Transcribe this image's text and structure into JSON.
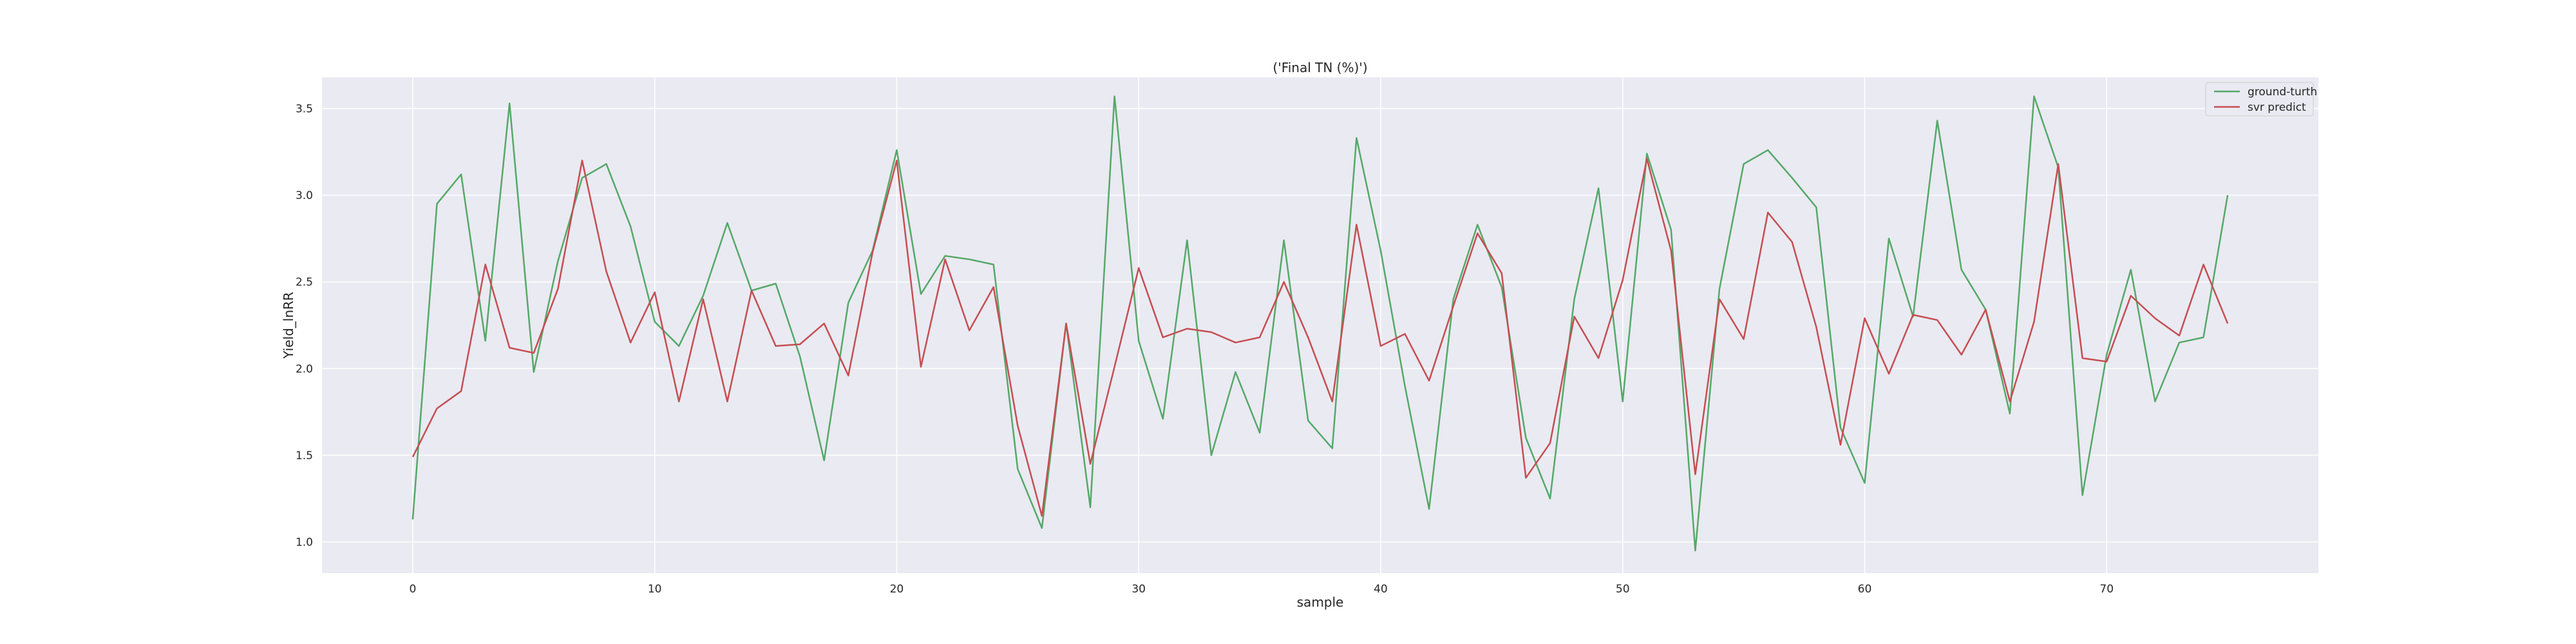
{
  "chart_data": {
    "type": "line",
    "title": "('Final TN (%)')",
    "xlabel": "sample",
    "ylabel": "Yield_lnRR",
    "xlim": [
      -3.75,
      78.75
    ],
    "ylim": [
      0.82,
      3.68
    ],
    "x_ticks": [
      0,
      10,
      20,
      30,
      40,
      50,
      60,
      70
    ],
    "y_ticks": [
      1.0,
      1.5,
      2.0,
      2.5,
      3.0,
      3.5
    ],
    "y_tick_labels": [
      "1.0",
      "1.5",
      "2.0",
      "2.5",
      "3.0",
      "3.5"
    ],
    "grid": true,
    "background": "#eaeaf2",
    "legend_position": "upper right",
    "x": [
      0,
      1,
      2,
      3,
      4,
      5,
      6,
      7,
      8,
      9,
      10,
      11,
      12,
      13,
      14,
      15,
      16,
      17,
      18,
      19,
      20,
      21,
      22,
      23,
      24,
      25,
      26,
      27,
      28,
      29,
      30,
      31,
      32,
      33,
      34,
      35,
      36,
      37,
      38,
      39,
      40,
      41,
      42,
      43,
      44,
      45,
      46,
      47,
      48,
      49,
      50,
      51,
      52,
      53,
      54,
      55,
      56,
      57,
      58,
      59,
      60,
      61,
      62,
      63,
      64,
      65,
      66,
      67,
      68,
      69,
      70,
      71,
      72,
      73,
      74,
      75
    ],
    "series": [
      {
        "name": "ground-turth",
        "color": "#55a868",
        "values": [
          1.13,
          2.95,
          3.12,
          2.16,
          3.53,
          1.98,
          2.62,
          3.1,
          3.18,
          2.82,
          2.27,
          2.13,
          2.42,
          2.84,
          2.45,
          2.49,
          2.07,
          1.47,
          2.38,
          2.68,
          3.26,
          2.43,
          2.65,
          2.63,
          2.6,
          1.42,
          1.08,
          2.26,
          1.2,
          3.57,
          2.16,
          1.71,
          2.74,
          1.5,
          1.98,
          1.63,
          2.74,
          1.7,
          1.54,
          3.33,
          2.68,
          1.9,
          1.19,
          2.4,
          2.83,
          2.47,
          1.6,
          1.25,
          2.4,
          3.04,
          1.81,
          3.24,
          2.8,
          0.95,
          2.46,
          3.18,
          3.26,
          3.1,
          2.93,
          1.66,
          1.34,
          2.75,
          2.3,
          3.43,
          2.57,
          2.34,
          1.74,
          3.57,
          3.16,
          1.27,
          2.08,
          2.57,
          1.81,
          2.15,
          2.18,
          3.0
        ]
      },
      {
        "name": "svr predict",
        "color": "#c44e52",
        "values": [
          1.49,
          1.77,
          1.87,
          2.6,
          2.12,
          2.09,
          2.46,
          3.2,
          2.56,
          2.15,
          2.44,
          1.81,
          2.4,
          1.81,
          2.45,
          2.13,
          2.14,
          2.26,
          1.96,
          2.67,
          3.2,
          2.01,
          2.63,
          2.22,
          2.47,
          1.67,
          1.15,
          2.26,
          1.45,
          2.01,
          2.58,
          2.18,
          2.23,
          2.21,
          2.15,
          2.18,
          2.5,
          2.18,
          1.81,
          2.83,
          2.13,
          2.2,
          1.93,
          2.36,
          2.78,
          2.55,
          1.37,
          1.57,
          2.3,
          2.06,
          2.51,
          3.21,
          2.68,
          1.39,
          2.4,
          2.17,
          2.9,
          2.73,
          2.24,
          1.56,
          2.29,
          1.97,
          2.31,
          2.28,
          2.08,
          2.34,
          1.81,
          2.27,
          3.18,
          2.06,
          2.04,
          2.42,
          2.29,
          2.19,
          2.6,
          2.26
        ]
      }
    ]
  }
}
